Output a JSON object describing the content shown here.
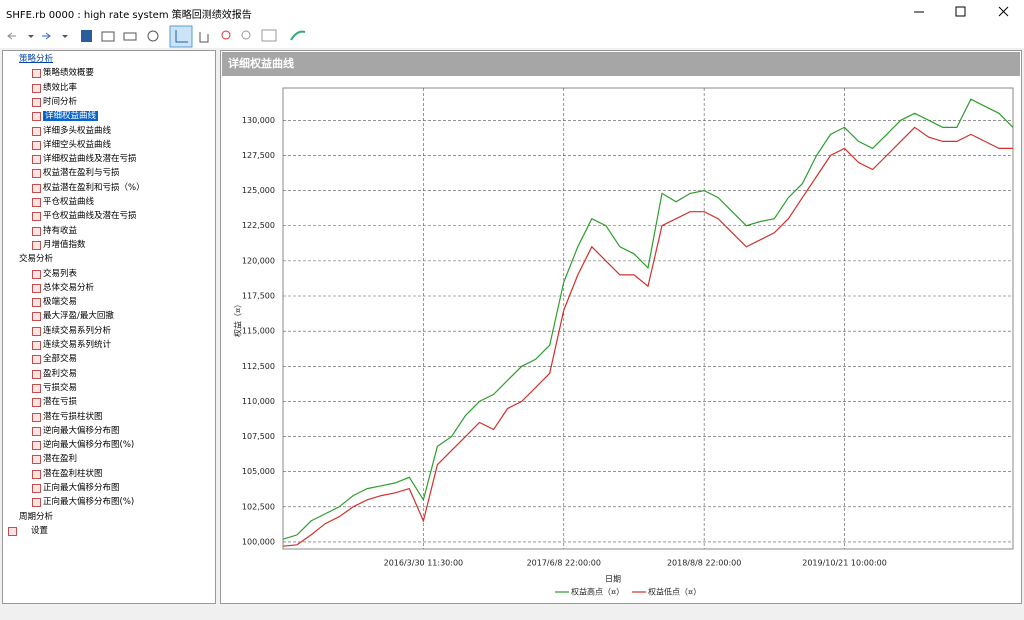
{
  "window": {
    "title": "SHFE.rb 0000 : high rate system 策略回测绩效报告"
  },
  "tree": [
    {
      "label": "策略分析",
      "items": [
        "策略绩效概要",
        "绩效比率",
        "时间分析",
        "详细权益曲线",
        "详细多头权益曲线",
        "详细空头权益曲线",
        "详细权益曲线及潜在亏损",
        "权益潜在盈利与亏损",
        "权益潜在盈利和亏损（%）",
        "平仓权益曲线",
        "平仓权益曲线及潜在亏损",
        "持有收益",
        "月增值指数"
      ]
    },
    {
      "label": "交易分析",
      "items": [
        "交易列表",
        "总体交易分析",
        "极端交易",
        "最大浮盈/最大回撤",
        "连续交易系列分析",
        "连续交易系列统计",
        "全部交易",
        "盈利交易",
        "亏损交易",
        "潜在亏损",
        "潜在亏损柱状图",
        "逆向最大偏移分布图",
        "逆向最大偏移分布图(%)",
        "潜在盈利",
        "潜在盈利柱状图",
        "正向最大偏移分布图",
        "正向最大偏移分布图(%)"
      ]
    },
    {
      "label": "周期分析",
      "items": []
    },
    {
      "label": "设置"
    }
  ],
  "panel": {
    "title": "详细权益曲线"
  },
  "chart_data": {
    "type": "line",
    "x_label": "日期",
    "y_label": "权益（¤）",
    "categories": [
      null,
      null,
      null,
      null,
      null,
      null,
      null,
      null,
      null,
      null,
      "2016/3/30 11:30:00",
      null,
      null,
      null,
      null,
      null,
      null,
      null,
      null,
      null,
      "2017/6/8 22:00:00",
      null,
      null,
      null,
      null,
      null,
      null,
      null,
      null,
      null,
      "2018/8/8 22:00:00",
      null,
      null,
      null,
      null,
      null,
      null,
      null,
      null,
      null,
      "2019/10/21 10:00:00",
      null,
      null,
      null,
      null,
      null,
      null,
      null,
      null,
      null,
      null,
      null,
      null
    ],
    "series": [
      {
        "name": "权益高点（¤）",
        "color": "#2e9e2e",
        "values": [
          100200,
          100500,
          101500,
          102000,
          102500,
          103300,
          103800,
          104000,
          104200,
          104600,
          103000,
          106800,
          107500,
          109000,
          110000,
          110500,
          111500,
          112500,
          113000,
          114000,
          118500,
          121000,
          123000,
          122500,
          121000,
          120500,
          119500,
          124800,
          124200,
          124800,
          125000,
          124500,
          123500,
          122500,
          122800,
          123000,
          124500,
          125500,
          127500,
          129000,
          129500,
          128500,
          128000,
          129000,
          130000,
          130500,
          130000,
          129500,
          129500,
          131500,
          131000,
          130500,
          129500
        ]
      },
      {
        "name": "权益低点（¤）",
        "color": "#d0312d",
        "values": [
          99700,
          99800,
          100500,
          101300,
          101800,
          102500,
          103000,
          103300,
          103500,
          103800,
          101500,
          105500,
          106500,
          107500,
          108500,
          108000,
          109500,
          110000,
          111000,
          112000,
          116500,
          119000,
          121000,
          120000,
          119000,
          119000,
          118200,
          122500,
          123000,
          123500,
          123500,
          123000,
          122000,
          121000,
          121500,
          122000,
          123000,
          124500,
          126000,
          127500,
          128000,
          127000,
          126500,
          127500,
          128500,
          129500,
          128800,
          128500,
          128500,
          129000,
          128500,
          128000,
          128000
        ]
      }
    ],
    "ylim": [
      99500,
      132300
    ],
    "yticks": [
      {
        "value": 100000,
        "label": "100,000"
      },
      {
        "value": 102500,
        "label": "102,500"
      },
      {
        "value": 105000,
        "label": "105,000"
      },
      {
        "value": 107500,
        "label": "107,500"
      },
      {
        "value": 110000,
        "label": "110,000"
      },
      {
        "value": 112500,
        "label": "112,500"
      },
      {
        "value": 115000,
        "label": "115,000"
      },
      {
        "value": 117500,
        "label": "117,500"
      },
      {
        "value": 120000,
        "label": "120,000"
      },
      {
        "value": 122500,
        "label": "122,500"
      },
      {
        "value": 125000,
        "label": "125,000"
      },
      {
        "value": 127500,
        "label": "127,500"
      },
      {
        "value": 130000,
        "label": "130,000"
      }
    ],
    "grid": true,
    "legend": "bottom"
  }
}
